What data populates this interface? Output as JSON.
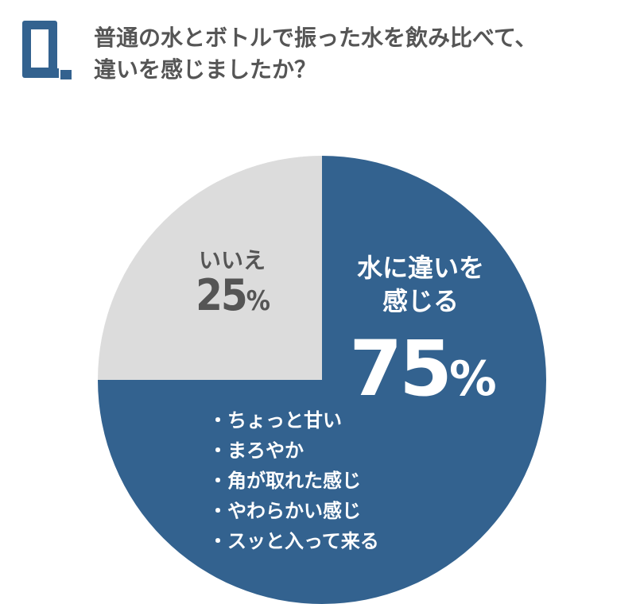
{
  "header": {
    "q_mark": "Q.",
    "question_line1": "普通の水とボトルで振った水を飲み比べて、",
    "question_line2": "違いを感じましたか？"
  },
  "colors": {
    "primary": "#33628F",
    "secondary": "#DCDCDC",
    "text_gray": "#555555"
  },
  "chart_data": {
    "type": "pie",
    "start": "12 o'clock, clockwise",
    "slices": [
      {
        "label": "水に違いを感じる",
        "value": 75,
        "display": "75",
        "unit": "%",
        "color": "#33628F"
      },
      {
        "label": "いいえ",
        "value": 25,
        "display": "25",
        "unit": "%",
        "color": "#DCDCDC"
      }
    ],
    "annotations": [
      "ちょっと甘い",
      "まろやか",
      "角が取れた感じ",
      "やわらかい感じ",
      "スッと入って来る"
    ]
  }
}
